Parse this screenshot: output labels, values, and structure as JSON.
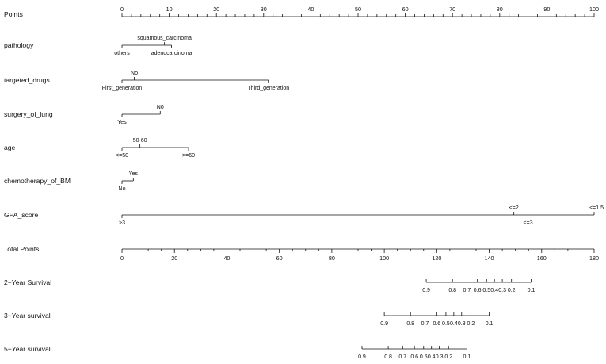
{
  "chart_data": {
    "type": "nomogram",
    "points_scale": {
      "label": "Points",
      "min": 0,
      "max": 100,
      "ticks": [
        0,
        10,
        20,
        30,
        40,
        50,
        60,
        70,
        80,
        90,
        100
      ],
      "minor_step": 2
    },
    "variables": [
      {
        "label": "pathology",
        "levels": [
          {
            "name": "others",
            "points": 0,
            "side": "below"
          },
          {
            "name": "squamous_carcinoma",
            "points": 9,
            "side": "above"
          },
          {
            "name": "adenocarcinoma",
            "points": 10.5,
            "side": "below"
          }
        ]
      },
      {
        "label": "targeted_drugs",
        "levels": [
          {
            "name": "First_generation",
            "points": 0,
            "side": "below"
          },
          {
            "name": "No",
            "points": 2.6,
            "side": "above"
          },
          {
            "name": "Third_generation",
            "points": 31,
            "side": "below"
          }
        ]
      },
      {
        "label": "surgery_of_lung",
        "levels": [
          {
            "name": "Yes",
            "points": 0,
            "side": "below"
          },
          {
            "name": "No",
            "points": 8.1,
            "side": "above"
          }
        ]
      },
      {
        "label": "age",
        "levels": [
          {
            "name": "<=50",
            "points": 0,
            "side": "below"
          },
          {
            "name": "50-60",
            "points": 3.8,
            "side": "above"
          },
          {
            "name": ">=60",
            "points": 14.1,
            "side": "below"
          }
        ]
      },
      {
        "label": "chemotherapy_of_BM",
        "levels": [
          {
            "name": "No",
            "points": 0,
            "side": "below"
          },
          {
            "name": "Yes",
            "points": 2.4,
            "side": "above"
          }
        ]
      },
      {
        "label": "GPA_score",
        "levels": [
          {
            "name": ">3",
            "points": 0,
            "side": "below"
          },
          {
            "name": "<=2",
            "points": 83,
            "side": "above"
          },
          {
            "name": "<=3",
            "points": 86,
            "side": "below"
          },
          {
            "name": "<=1.5",
            "points": 100,
            "side": "above"
          }
        ]
      }
    ],
    "total_points_scale": {
      "label": "Total Points",
      "min": 0,
      "max": 180,
      "ticks": [
        0,
        20,
        40,
        60,
        80,
        100,
        120,
        140,
        160,
        180
      ],
      "minor_step": 5
    },
    "survival_scales": [
      {
        "label": "2−Year Survival",
        "ticks": [
          {
            "label": "0.9",
            "total_points": 116
          },
          {
            "label": "0.8",
            "total_points": 126
          },
          {
            "label": "0.7",
            "total_points": 131.5
          },
          {
            "label": "0.6",
            "total_points": 135.5
          },
          {
            "label": "0.5",
            "total_points": 139
          },
          {
            "label": "0.4",
            "total_points": 142
          },
          {
            "label": "0.3",
            "total_points": 145
          },
          {
            "label": "0.2",
            "total_points": 148.5
          },
          {
            "label": "0.1",
            "total_points": 156
          }
        ]
      },
      {
        "label": "3−Year survival",
        "ticks": [
          {
            "label": "0.9",
            "total_points": 100
          },
          {
            "label": "0.8",
            "total_points": 110
          },
          {
            "label": "0.7",
            "total_points": 115.5
          },
          {
            "label": "0.6",
            "total_points": 120
          },
          {
            "label": "0.5",
            "total_points": 123.5
          },
          {
            "label": "0.4",
            "total_points": 126.5
          },
          {
            "label": "0.3",
            "total_points": 129.5
          },
          {
            "label": "0.2",
            "total_points": 133
          },
          {
            "label": "0.1",
            "total_points": 140
          }
        ]
      },
      {
        "label": "5−Year survival",
        "ticks": [
          {
            "label": "0.9",
            "total_points": 91.5
          },
          {
            "label": "0.8",
            "total_points": 101.5
          },
          {
            "label": "0.7",
            "total_points": 107
          },
          {
            "label": "0.6",
            "total_points": 111.5
          },
          {
            "label": "0.5",
            "total_points": 115
          },
          {
            "label": "0.4",
            "total_points": 118
          },
          {
            "label": "0.3",
            "total_points": 121
          },
          {
            "label": "0.2",
            "total_points": 124.5
          },
          {
            "label": "0.1",
            "total_points": 131.5
          }
        ]
      }
    ]
  }
}
